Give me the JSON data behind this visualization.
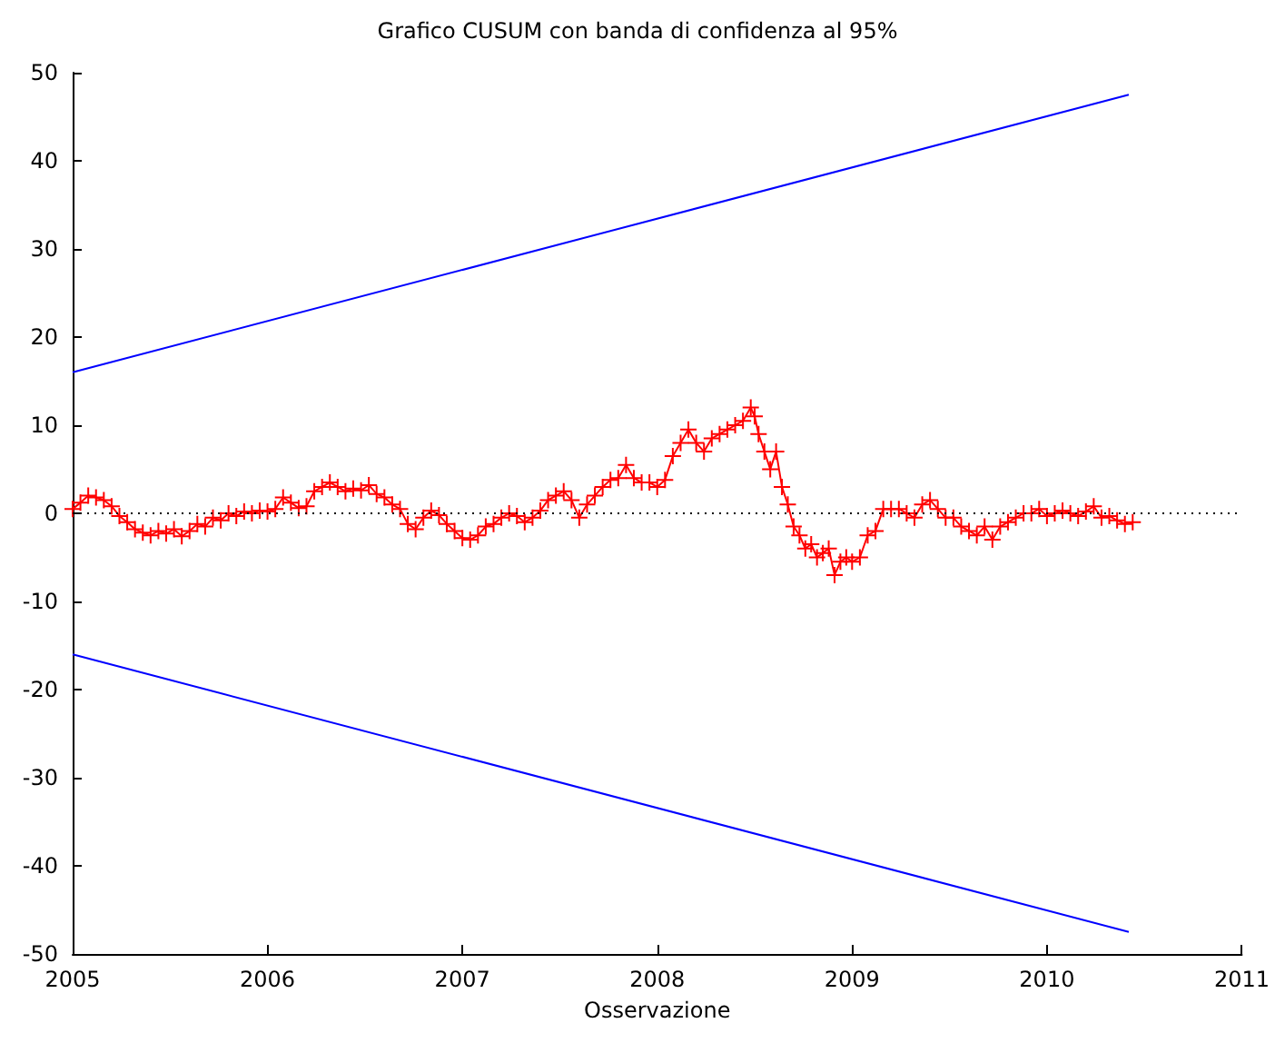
{
  "chart_data": {
    "type": "line",
    "title": "Grafico CUSUM con banda di confidenza al 95%",
    "xlabel": "Osservazione",
    "xlim": [
      2005,
      2011
    ],
    "xticks": [
      2005,
      2006,
      2007,
      2008,
      2009,
      2010,
      2011
    ],
    "ylim": [
      -50,
      50
    ],
    "yticks": [
      -50,
      -40,
      -30,
      -20,
      -10,
      0,
      10,
      20,
      30,
      40,
      50
    ],
    "grid": false,
    "ref_lines": [
      {
        "axis": "y",
        "value": 0,
        "color": "#000000",
        "line_style": "dotted"
      }
    ],
    "series": [
      {
        "color": "#0000ff",
        "marker": "none",
        "x": [
          2005,
          2010.42
        ],
        "values": [
          16,
          47.5
        ]
      },
      {
        "color": "#0000ff",
        "marker": "none",
        "x": [
          2005,
          2010.42
        ],
        "values": [
          -16,
          -47.5
        ]
      },
      {
        "color": "#ff0000",
        "marker": "cross",
        "x": [
          2005.0,
          2005.04,
          2005.08,
          2005.12,
          2005.16,
          2005.2,
          2005.24,
          2005.28,
          2005.32,
          2005.36,
          2005.4,
          2005.44,
          2005.48,
          2005.52,
          2005.56,
          2005.6,
          2005.64,
          2005.68,
          2005.72,
          2005.76,
          2005.8,
          2005.84,
          2005.88,
          2005.92,
          2005.96,
          2006.0,
          2006.04,
          2006.08,
          2006.12,
          2006.16,
          2006.2,
          2006.24,
          2006.28,
          2006.32,
          2006.36,
          2006.4,
          2006.44,
          2006.48,
          2006.52,
          2006.56,
          2006.6,
          2006.64,
          2006.68,
          2006.72,
          2006.76,
          2006.8,
          2006.84,
          2006.88,
          2006.92,
          2006.96,
          2007.0,
          2007.04,
          2007.08,
          2007.12,
          2007.16,
          2007.2,
          2007.24,
          2007.28,
          2007.32,
          2007.36,
          2007.4,
          2007.44,
          2007.48,
          2007.52,
          2007.56,
          2007.6,
          2007.64,
          2007.68,
          2007.72,
          2007.76,
          2007.8,
          2007.84,
          2007.88,
          2007.92,
          2007.96,
          2008.0,
          2008.04,
          2008.08,
          2008.12,
          2008.16,
          2008.2,
          2008.24,
          2008.28,
          2008.32,
          2008.36,
          2008.4,
          2008.44,
          2008.48,
          2008.5,
          2008.52,
          2008.55,
          2008.58,
          2008.61,
          2008.64,
          2008.67,
          2008.7,
          2008.73,
          2008.76,
          2008.79,
          2008.82,
          2008.85,
          2008.88,
          2008.91,
          2008.94,
          2008.97,
          2009.0,
          2009.04,
          2009.08,
          2009.12,
          2009.16,
          2009.2,
          2009.24,
          2009.28,
          2009.32,
          2009.36,
          2009.4,
          2009.44,
          2009.48,
          2009.52,
          2009.56,
          2009.6,
          2009.64,
          2009.68,
          2009.72,
          2009.76,
          2009.8,
          2009.84,
          2009.88,
          2009.92,
          2009.96,
          2010.0,
          2010.04,
          2010.08,
          2010.12,
          2010.16,
          2010.2,
          2010.24,
          2010.28,
          2010.32,
          2010.36,
          2010.4,
          2010.44
        ],
        "values": [
          0.5,
          1.2,
          2,
          1.8,
          1.5,
          0.8,
          -0.3,
          -1,
          -1.8,
          -2.2,
          -2.5,
          -2,
          -2.3,
          -1.8,
          -2.6,
          -2,
          -1.2,
          -1.5,
          -0.5,
          -0.8,
          0,
          -0.3,
          0.2,
          0,
          0.3,
          0.2,
          0.5,
          1.8,
          1.2,
          0.6,
          0.8,
          2.5,
          3,
          3.5,
          3,
          2.5,
          2.8,
          2.6,
          3.2,
          2.2,
          1.8,
          1,
          0.5,
          -1.2,
          -1.8,
          -0.5,
          0.3,
          -0.2,
          -1.2,
          -2,
          -2.8,
          -3,
          -2.5,
          -1.5,
          -1.2,
          -0.5,
          0,
          -0.3,
          -1,
          -0.5,
          0.3,
          1.5,
          2,
          2.5,
          1.5,
          -0.5,
          1,
          2,
          3,
          3.8,
          4,
          5.5,
          4,
          3.5,
          3.5,
          3,
          3.8,
          6.5,
          8,
          9.5,
          8,
          7,
          8.5,
          9,
          9.5,
          10,
          10.5,
          12,
          11,
          9,
          7,
          5,
          7,
          3,
          1,
          -1.5,
          -2.5,
          -4,
          -3.5,
          -5,
          -4.5,
          -4,
          -7,
          -5.5,
          -5,
          -5.5,
          -5,
          -2.5,
          -2,
          0.5,
          0.5,
          0.5,
          0,
          -0.5,
          1,
          1.5,
          0.5,
          -0.5,
          -0.5,
          -1.5,
          -2,
          -2.5,
          -1.5,
          -3,
          -1.5,
          -1,
          -0.5,
          0,
          0,
          0.5,
          -0.3,
          0,
          0.3,
          0,
          -0.3,
          0.2,
          0.8,
          -0.5,
          -0.3,
          -0.8,
          -1.2,
          -1
        ]
      }
    ]
  }
}
